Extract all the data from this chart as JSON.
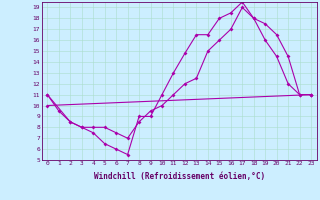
{
  "xlabel": "Windchill (Refroidissement éolien,°C)",
  "bg_color": "#cceeff",
  "line_color": "#aa00aa",
  "xlim": [
    -0.5,
    23.5
  ],
  "ylim": [
    5,
    19.5
  ],
  "xticks": [
    0,
    1,
    2,
    3,
    4,
    5,
    6,
    7,
    8,
    9,
    10,
    11,
    12,
    13,
    14,
    15,
    16,
    17,
    18,
    19,
    20,
    21,
    22,
    23
  ],
  "yticks": [
    5,
    6,
    7,
    8,
    9,
    10,
    11,
    12,
    13,
    14,
    15,
    16,
    17,
    18,
    19
  ],
  "line1_x": [
    0,
    1,
    2,
    3,
    4,
    5,
    6,
    7,
    8,
    9,
    10,
    11,
    12,
    13,
    14,
    15,
    16,
    17,
    18,
    19,
    20,
    21,
    22,
    23
  ],
  "line1_y": [
    11,
    9.5,
    8.5,
    8,
    7.5,
    6.5,
    6,
    5.5,
    9,
    9,
    11,
    13,
    14.8,
    16.5,
    16.5,
    18,
    18.5,
    19.5,
    18,
    16,
    14.5,
    12,
    11,
    11
  ],
  "line2_x": [
    0,
    2,
    3,
    4,
    5,
    6,
    7,
    8,
    9,
    10,
    11,
    12,
    13,
    14,
    15,
    16,
    17,
    18,
    19,
    20,
    21,
    22,
    23
  ],
  "line2_y": [
    11,
    8.5,
    8,
    8,
    8,
    7.5,
    7,
    8.5,
    9.5,
    10,
    11,
    12,
    12.5,
    15,
    16,
    17,
    19,
    18,
    17.5,
    16.5,
    14.5,
    11,
    11
  ],
  "line3_x": [
    0,
    23
  ],
  "line3_y": [
    10,
    11
  ],
  "grid_color": "#aaddcc",
  "spine_color": "#660066",
  "tick_color": "#660066",
  "label_color": "#660066",
  "tick_fontsize": 4.5,
  "xlabel_fontsize": 5.5
}
